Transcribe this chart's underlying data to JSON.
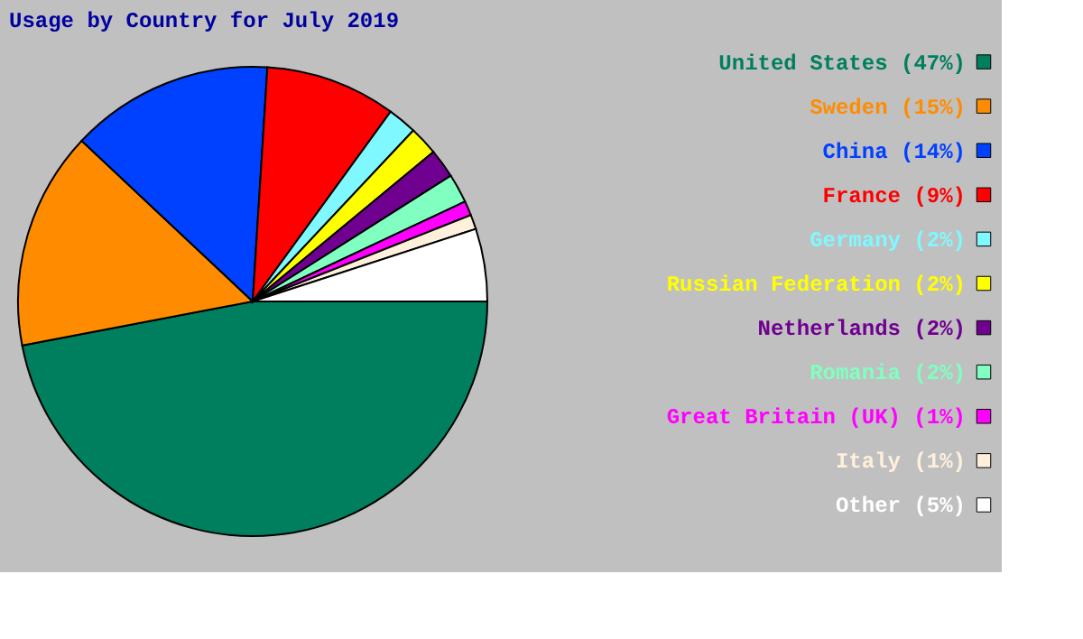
{
  "chart_data": {
    "type": "pie",
    "title": "Usage by Country for July 2019",
    "categories": [
      "United States",
      "Sweden",
      "China",
      "France",
      "Germany",
      "Russian Federation",
      "Netherlands",
      "Romania",
      "Great Britain (UK)",
      "Italy",
      "Other"
    ],
    "values": [
      47,
      15,
      14,
      9,
      2,
      2,
      2,
      2,
      1,
      1,
      5
    ],
    "value_labels": [
      "(47%)",
      "(15%)",
      "(14%)",
      "(9%)",
      "(2%)",
      "(2%)",
      "(2%)",
      "(2%)",
      "(1%)",
      "(1%)",
      "(5%)"
    ],
    "colors": [
      "#007f5f",
      "#ff8c00",
      "#0040ff",
      "#ff0000",
      "#80f8ff",
      "#ffff00",
      "#700090",
      "#80ffc0",
      "#ff00ff",
      "#fff0dc",
      "#ffffff"
    ],
    "legend": "right"
  }
}
